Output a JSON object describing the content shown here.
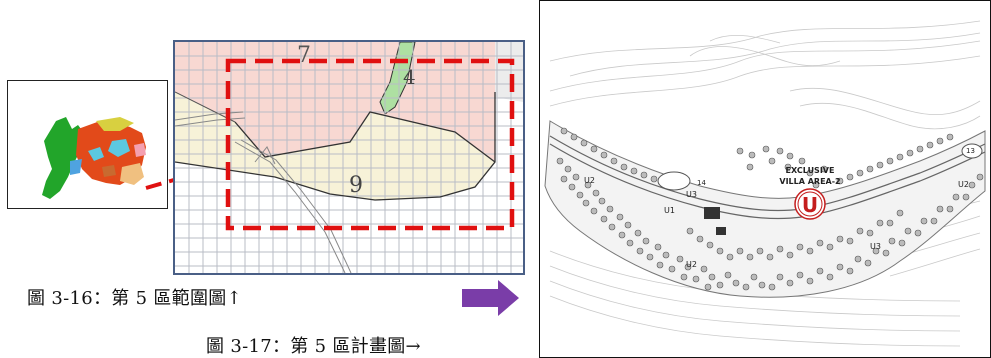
{
  "captions": {
    "fig_3_16": "圖 3-16：第 5 區範圍圖↑",
    "fig_3_17": "圖 3-17：第 5 區計畫圖→"
  },
  "zoom_map": {
    "zone_labels": [
      "7",
      "4",
      "9"
    ]
  },
  "site_plan": {
    "area_title_line1": "EXCLUSIVE",
    "area_title_line2": "VILLA AREA-2",
    "villa_symbol": "U",
    "unit_labels": [
      "U2",
      "U1",
      "U3",
      "14",
      "U2",
      "U3",
      "U2",
      "13"
    ]
  },
  "colors": {
    "highlight_red": "#e01010",
    "arrow_purple": "#7a3da8",
    "zone_pink": "#f8d8d2",
    "zone_cream": "#f7f2d8",
    "zone_green": "#aee0a2"
  }
}
